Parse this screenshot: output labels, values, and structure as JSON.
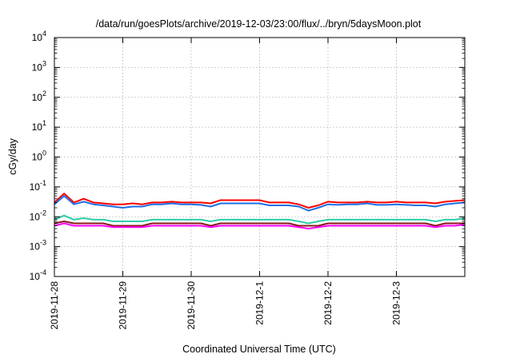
{
  "chart_data": {
    "type": "line",
    "title": "/data/run/goesPlots/archive/2019-12-03/23:00/flux/../bryn/5daysMoon.plot",
    "xlabel": "Coordinated Universal Time (UTC)",
    "ylabel": "cGy/day",
    "yscale": "log",
    "ylim": [
      0.0001,
      10000
    ],
    "ytick_labels": [
      {
        "base": "10",
        "exp": "-4"
      },
      {
        "base": "10",
        "exp": "-3"
      },
      {
        "base": "10",
        "exp": "-2"
      },
      {
        "base": "10",
        "exp": "-1"
      },
      {
        "base": "10",
        "exp": "0"
      },
      {
        "base": "10",
        "exp": "1"
      },
      {
        "base": "10",
        "exp": "2"
      },
      {
        "base": "10",
        "exp": "3"
      },
      {
        "base": "10",
        "exp": "4"
      }
    ],
    "xlim": [
      "2019-11-28",
      "2019-12-04"
    ],
    "xtick_labels": [
      "2019-11-28",
      "2019-11-29",
      "2019-11-30",
      "2019-12-1",
      "2019-12-2",
      "2019-12-3"
    ],
    "grid": true,
    "series": [
      {
        "color": "#ff0000",
        "values": [
          0.03,
          0.06,
          0.03,
          0.04,
          0.03,
          0.028,
          0.026,
          0.026,
          0.028,
          0.026,
          0.03,
          0.03,
          0.032,
          0.03,
          0.03,
          0.03,
          0.028,
          0.036,
          0.036,
          0.036,
          0.036,
          0.036,
          0.03,
          0.03,
          0.03,
          0.026,
          0.02,
          0.024,
          0.032,
          0.03,
          0.03,
          0.03,
          0.032,
          0.03,
          0.03,
          0.032,
          0.03,
          0.03,
          0.03,
          0.028,
          0.032,
          0.034,
          0.036
        ]
      },
      {
        "color": "#1e6ee8",
        "values": [
          0.026,
          0.05,
          0.026,
          0.032,
          0.026,
          0.024,
          0.022,
          0.02,
          0.022,
          0.022,
          0.026,
          0.026,
          0.028,
          0.026,
          0.026,
          0.025,
          0.022,
          0.028,
          0.028,
          0.028,
          0.028,
          0.028,
          0.024,
          0.024,
          0.024,
          0.022,
          0.016,
          0.02,
          0.026,
          0.025,
          0.026,
          0.026,
          0.028,
          0.025,
          0.025,
          0.026,
          0.025,
          0.024,
          0.024,
          0.022,
          0.026,
          0.028,
          0.03
        ]
      },
      {
        "color": "#2ccfa8",
        "values": [
          0.008,
          0.011,
          0.008,
          0.009,
          0.008,
          0.008,
          0.007,
          0.007,
          0.007,
          0.007,
          0.008,
          0.008,
          0.008,
          0.008,
          0.008,
          0.008,
          0.007,
          0.008,
          0.008,
          0.008,
          0.008,
          0.008,
          0.008,
          0.008,
          0.008,
          0.007,
          0.006,
          0.007,
          0.008,
          0.008,
          0.008,
          0.008,
          0.008,
          0.008,
          0.008,
          0.008,
          0.008,
          0.008,
          0.008,
          0.007,
          0.008,
          0.008,
          0.009
        ]
      },
      {
        "color": "#8b1a1a",
        "values": [
          0.006,
          0.007,
          0.006,
          0.006,
          0.006,
          0.006,
          0.005,
          0.005,
          0.005,
          0.005,
          0.006,
          0.006,
          0.006,
          0.006,
          0.006,
          0.006,
          0.005,
          0.006,
          0.006,
          0.006,
          0.006,
          0.006,
          0.006,
          0.006,
          0.006,
          0.005,
          0.005,
          0.005,
          0.006,
          0.006,
          0.006,
          0.006,
          0.006,
          0.006,
          0.006,
          0.006,
          0.006,
          0.006,
          0.006,
          0.005,
          0.006,
          0.006,
          0.006
        ]
      },
      {
        "color": "#ff00ff",
        "values": [
          0.005,
          0.006,
          0.005,
          0.005,
          0.005,
          0.005,
          0.0045,
          0.0045,
          0.0045,
          0.0045,
          0.005,
          0.005,
          0.005,
          0.005,
          0.005,
          0.005,
          0.0045,
          0.005,
          0.005,
          0.005,
          0.005,
          0.005,
          0.005,
          0.005,
          0.005,
          0.0045,
          0.004,
          0.0045,
          0.005,
          0.005,
          0.005,
          0.005,
          0.005,
          0.005,
          0.005,
          0.005,
          0.005,
          0.005,
          0.005,
          0.0045,
          0.005,
          0.005,
          0.0055
        ]
      }
    ]
  }
}
